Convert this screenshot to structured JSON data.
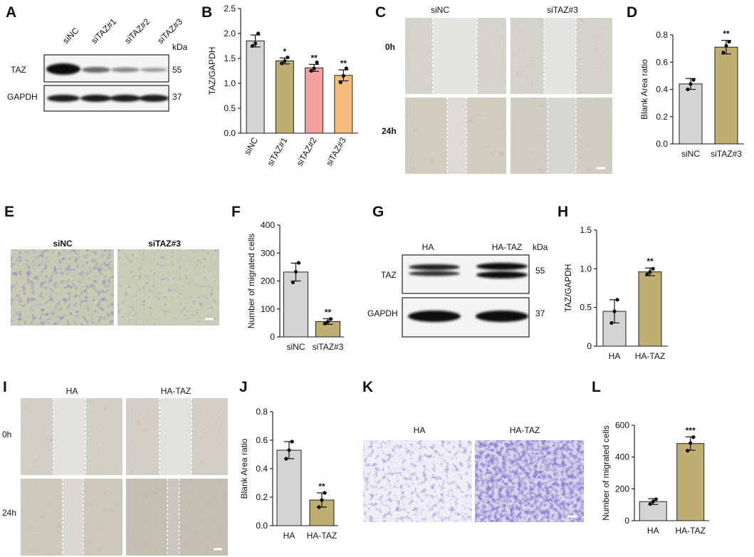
{
  "panel_labels": {
    "A": "A",
    "B": "B",
    "C": "C",
    "D": "D",
    "E": "E",
    "F": "F",
    "G": "G",
    "H": "H",
    "I": "I",
    "J": "J",
    "K": "K",
    "L": "L"
  },
  "blots": {
    "A": {
      "lanes": [
        "siNC",
        "siTAZ#1",
        "siTAZ#2",
        "siTAZ#3"
      ],
      "kda_label": "kDa",
      "rows": [
        {
          "name": "TAZ",
          "kda": "55"
        },
        {
          "name": "GAPDH",
          "kda": "37"
        }
      ]
    },
    "G": {
      "lanes": [
        "HA",
        "HA-TAZ"
      ],
      "kda_label": "kDa",
      "rows": [
        {
          "name": "TAZ",
          "kda": "55"
        },
        {
          "name": "GAPDH",
          "kda": "37"
        }
      ]
    }
  },
  "images": {
    "C": {
      "columns": [
        "siNC",
        "siTAZ#3"
      ],
      "rows": [
        "0h",
        "24h"
      ]
    },
    "E": {
      "columns": [
        "siNC",
        "siTAZ#3"
      ]
    },
    "I": {
      "columns": [
        "HA",
        "HA-TAZ"
      ],
      "rows": [
        "0h",
        "24h"
      ]
    },
    "K": {
      "columns": [
        "HA",
        "HA-TAZ"
      ]
    }
  },
  "chart_data": [
    {
      "panel": "B",
      "type": "bar",
      "categories": [
        "siNC",
        "siTAZ#1",
        "siTAZ#2",
        "siTAZ#3"
      ],
      "values": [
        1.85,
        1.45,
        1.31,
        1.16
      ],
      "errors": [
        0.12,
        0.06,
        0.07,
        0.11
      ],
      "points": [
        [
          1.75,
          1.8,
          2.0
        ],
        [
          1.4,
          1.45,
          1.52
        ],
        [
          1.25,
          1.3,
          1.42
        ],
        [
          1.02,
          1.15,
          1.3
        ]
      ],
      "significance": [
        "",
        "*",
        "**",
        "**"
      ],
      "colors": [
        "#d4d4d4",
        "#bfae72",
        "#f4a0a0",
        "#f7bc7c"
      ],
      "ylabel": "TAZ/GAPDH",
      "ylim": [
        0,
        2.5
      ],
      "yticks": [
        "0.0",
        "0.5",
        "1.0",
        "1.5",
        "2.0",
        "2.5"
      ]
    },
    {
      "panel": "D",
      "type": "bar",
      "categories": [
        "siNC",
        "siTAZ#3"
      ],
      "values": [
        0.44,
        0.71
      ],
      "errors": [
        0.04,
        0.05
      ],
      "points": [
        [
          0.4,
          0.44,
          0.47
        ],
        [
          0.67,
          0.72,
          0.75
        ]
      ],
      "significance": [
        "",
        "**"
      ],
      "colors": [
        "#d4d4d4",
        "#bfae72"
      ],
      "ylabel": "Blank Area ratio",
      "ylim": [
        0,
        0.8
      ],
      "yticks": [
        "0.0",
        "0.2",
        "0.4",
        "0.6",
        "0.8"
      ]
    },
    {
      "panel": "F",
      "type": "bar",
      "categories": [
        "siNC",
        "siTAZ#3"
      ],
      "values": [
        232,
        55
      ],
      "errors": [
        32,
        10
      ],
      "points": [
        [
          195,
          233,
          265
        ],
        [
          48,
          54,
          64
        ]
      ],
      "significance": [
        "",
        "**"
      ],
      "colors": [
        "#d4d4d4",
        "#bfae72"
      ],
      "ylabel": "Number of migrated cells",
      "ylim": [
        0,
        400
      ],
      "yticks": [
        "0",
        "100",
        "200",
        "300",
        "400"
      ]
    },
    {
      "panel": "H",
      "type": "bar",
      "categories": [
        "HA",
        "HA-TAZ"
      ],
      "values": [
        0.45,
        0.96
      ],
      "errors": [
        0.15,
        0.05
      ],
      "points": [
        [
          0.3,
          0.45,
          0.6
        ],
        [
          0.93,
          0.96,
          1.0
        ]
      ],
      "significance": [
        "",
        "**"
      ],
      "colors": [
        "#d4d4d4",
        "#bfae72"
      ],
      "ylabel": "TAZ/GAPDH",
      "ylim": [
        0,
        1.5
      ],
      "yticks": [
        "0",
        "0.5",
        "1.0",
        "1.5"
      ]
    },
    {
      "panel": "J",
      "type": "bar",
      "categories": [
        "HA",
        "HA-TAZ"
      ],
      "values": [
        0.53,
        0.18
      ],
      "errors": [
        0.06,
        0.05
      ],
      "points": [
        [
          0.47,
          0.53,
          0.59
        ],
        [
          0.13,
          0.18,
          0.23
        ]
      ],
      "significance": [
        "",
        "**"
      ],
      "colors": [
        "#d4d4d4",
        "#bfae72"
      ],
      "ylabel": "Blank Area ratio",
      "ylim": [
        0,
        0.8
      ],
      "yticks": [
        "0.0",
        "0.2",
        "0.4",
        "0.6",
        "0.8"
      ]
    },
    {
      "panel": "L",
      "type": "bar",
      "categories": [
        "HA",
        "HA-TAZ"
      ],
      "values": [
        120,
        485
      ],
      "errors": [
        18,
        42
      ],
      "points": [
        [
          105,
          120,
          135
        ],
        [
          440,
          488,
          525
        ]
      ],
      "significance": [
        "",
        "***"
      ],
      "colors": [
        "#d4d4d4",
        "#bfae72"
      ],
      "ylabel": "Number of migrated cells",
      "ylim": [
        0,
        600
      ],
      "yticks": [
        "0",
        "200",
        "400",
        "600"
      ]
    }
  ]
}
